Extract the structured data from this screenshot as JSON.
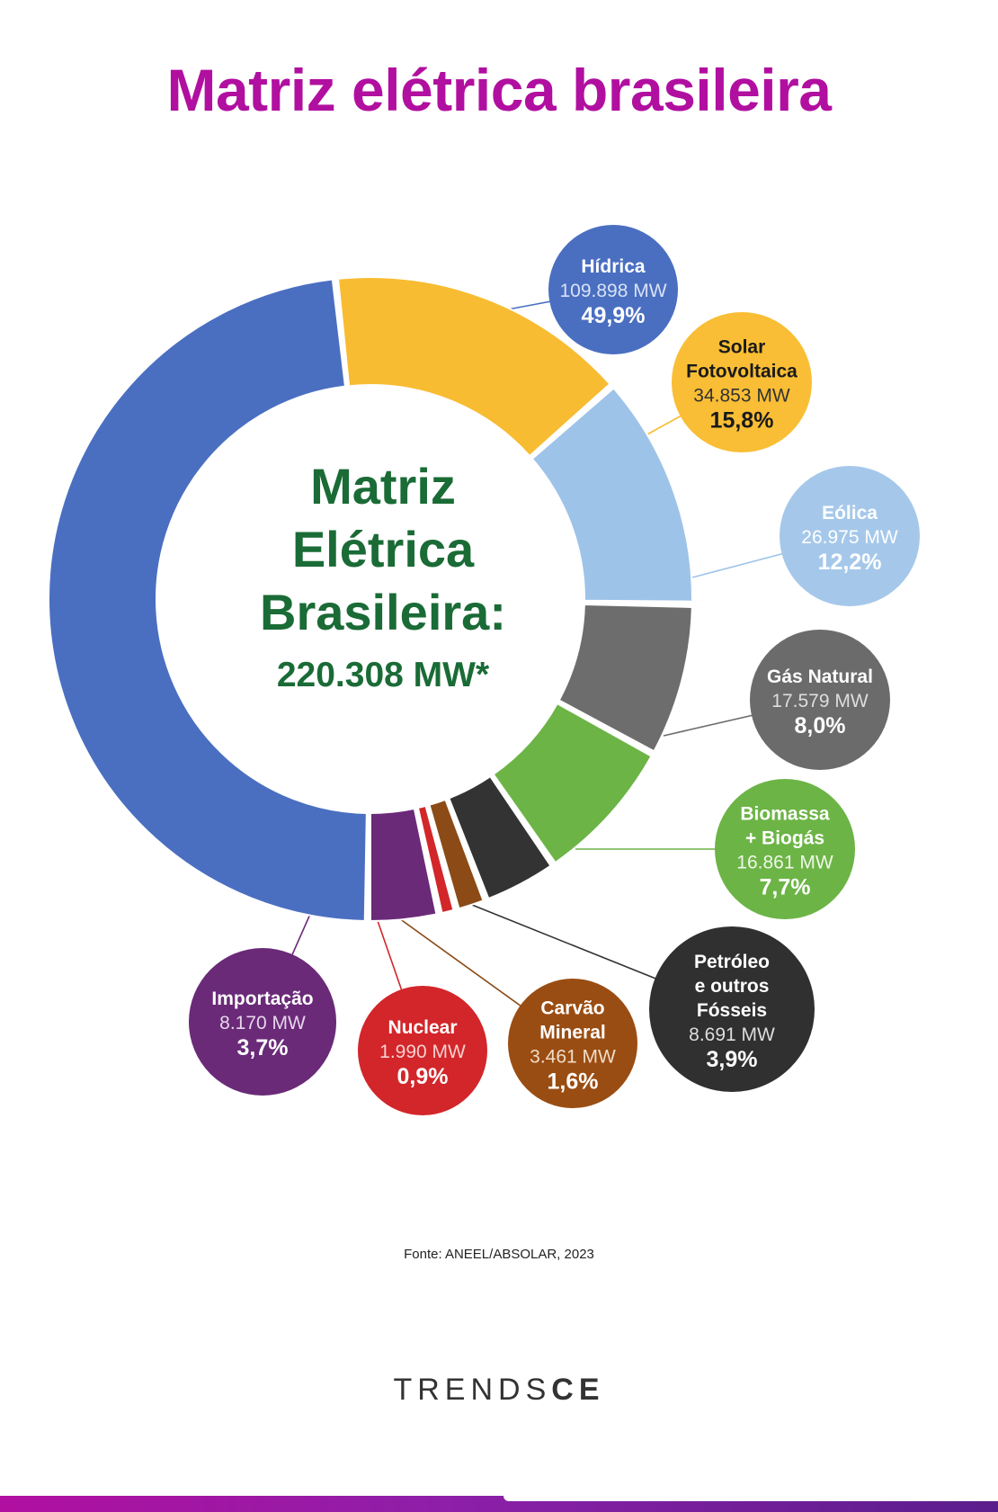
{
  "title": "Matriz elétrica brasileira",
  "source": "Fonte: ANEEL/ABSOLAR, 2023",
  "brand": {
    "part1": "TRENDS",
    "part2": "CE"
  },
  "chart_data": {
    "type": "pie",
    "center_title": [
      "Matriz",
      "Elétrica",
      "Brasileira:"
    ],
    "center_total": "220.308 MW*",
    "slices": [
      {
        "name": [
          "Hídrica"
        ],
        "mw": "109.898 MW",
        "pct": "49,9%",
        "value": 49.9,
        "color": "#4a6fc1",
        "bubble": "#4a6fc1",
        "text": "#ffffff",
        "sub": "#d8e2f6"
      },
      {
        "name": [
          "Solar",
          "Fotovoltaica"
        ],
        "mw": "34.853 MW",
        "pct": "15,8%",
        "value": 15.8,
        "color": "#f8bc32",
        "bubble": "#f9be35",
        "text": "#1a1a1a",
        "sub": "#333333"
      },
      {
        "name": [
          "Eólica"
        ],
        "mw": "26.975 MW",
        "pct": "12,2%",
        "value": 12.2,
        "color": "#9ec3e8",
        "bubble": "#a5c8ea",
        "text": "#ffffff",
        "sub": "#ffffff"
      },
      {
        "name": [
          "Gás Natural"
        ],
        "mw": "17.579 MW",
        "pct": "8,0%",
        "value": 8.0,
        "color": "#6d6d6d",
        "bubble": "#6b6b6b",
        "text": "#ffffff",
        "sub": "#dddddd"
      },
      {
        "name": [
          "Biomassa",
          "+ Biogás"
        ],
        "mw": "16.861 MW",
        "pct": "7,7%",
        "value": 7.7,
        "color": "#6cb446",
        "bubble": "#6cb446",
        "text": "#ffffff",
        "sub": "#eef7e8"
      },
      {
        "name": [
          "Petróleo",
          "e outros",
          "Fósseis"
        ],
        "mw": "8.691 MW",
        "pct": "3,9%",
        "value": 3.9,
        "color": "#333333",
        "bubble": "#303030",
        "text": "#ffffff",
        "sub": "#dddddd"
      },
      {
        "name": [
          "Carvão",
          "Mineral"
        ],
        "mw": "3.461 MW",
        "pct": "1,6%",
        "value": 1.6,
        "color": "#8b4a16",
        "bubble": "#9a4d12",
        "text": "#ffffff",
        "sub": "#f0dcc8"
      },
      {
        "name": [
          "Nuclear"
        ],
        "mw": "1.990 MW",
        "pct": "0,9%",
        "value": 0.9,
        "color": "#d2262a",
        "bubble": "#d2262a",
        "text": "#ffffff",
        "sub": "#f6d0d0"
      },
      {
        "name": [
          "Importação"
        ],
        "mw": "8.170 MW",
        "pct": "3,7%",
        "value": 3.7,
        "color": "#6a2a78",
        "bubble": "#6a2a78",
        "text": "#ffffff",
        "sub": "#e6d6ea"
      }
    ],
    "center_text_color": "#1a6b36"
  }
}
